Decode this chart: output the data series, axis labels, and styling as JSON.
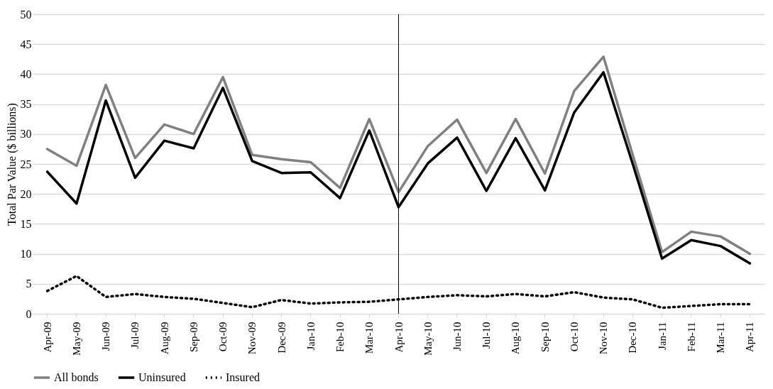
{
  "chart_data": {
    "type": "line",
    "ylabel": "Total Par Value ($ billions)",
    "categories": [
      "Apr-09",
      "May-09",
      "Jun-09",
      "Jul-09",
      "Aug-09",
      "Sep-09",
      "Oct-09",
      "Nov-09",
      "Dec-09",
      "Jan-10",
      "Feb-10",
      "Mar-10",
      "Apr-10",
      "May-10",
      "Jun-10",
      "Jul-10",
      "Aug-10",
      "Sep-10",
      "Oct-10",
      "Nov-10",
      "Dec-10",
      "Jan-11",
      "Feb-11",
      "Mar-11",
      "Apr-11"
    ],
    "series": [
      {
        "name": "All bonds",
        "color": "#808080",
        "line_style": "solid",
        "values": [
          27.5,
          24.7,
          38.2,
          26.0,
          31.6,
          30.0,
          39.5,
          26.5,
          25.8,
          25.3,
          21.0,
          32.5,
          20.3,
          28.0,
          32.4,
          23.5,
          32.5,
          23.4,
          37.2,
          42.9,
          26.5,
          10.3,
          13.7,
          12.9,
          10.0
        ]
      },
      {
        "name": "Uninsured",
        "color": "#000000",
        "line_style": "solid",
        "values": [
          23.7,
          18.4,
          35.6,
          22.7,
          28.9,
          27.6,
          37.7,
          25.5,
          23.5,
          23.6,
          19.3,
          30.6,
          17.8,
          25.1,
          29.4,
          20.5,
          29.3,
          20.6,
          33.6,
          40.3,
          25.0,
          9.2,
          12.3,
          11.3,
          8.4
        ]
      },
      {
        "name": "Insured",
        "color": "#000000",
        "line_style": "dotted",
        "values": [
          3.8,
          6.3,
          2.8,
          3.3,
          2.8,
          2.5,
          1.8,
          1.1,
          2.3,
          1.7,
          1.9,
          2.0,
          2.4,
          2.8,
          3.1,
          2.9,
          3.3,
          2.9,
          3.6,
          2.7,
          2.4,
          1.0,
          1.3,
          1.6,
          1.6
        ]
      }
    ],
    "ylim": [
      0,
      50
    ],
    "yticks": [
      0,
      5,
      10,
      15,
      20,
      25,
      30,
      35,
      40,
      45,
      50
    ],
    "grid": "y",
    "legend": "bottom",
    "ref_lines": [
      {
        "axis": "x",
        "value": "Apr-10",
        "color": "#000000"
      }
    ]
  }
}
